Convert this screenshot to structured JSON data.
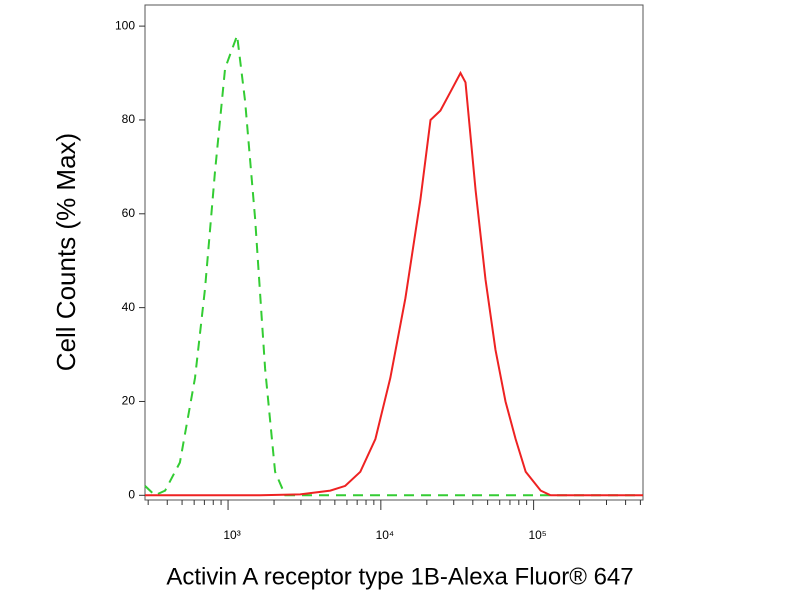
{
  "chart_data": {
    "type": "line",
    "xlabel": "Activin A receptor type 1B-Alexa Fluor® 647",
    "ylabel": "Cell Counts (% Max)",
    "xscale": "log",
    "xminor": true,
    "xlim": [
      286,
      520000
    ],
    "ylim": [
      -1,
      104.5
    ],
    "xticks": [
      {
        "value": 1000,
        "label": "10³"
      },
      {
        "value": 10000,
        "label": "10⁴"
      },
      {
        "value": 100000,
        "label": "10⁵"
      }
    ],
    "yticks": [
      0,
      20,
      40,
      60,
      80,
      100
    ],
    "series": [
      {
        "color": "#33cc33",
        "dash": true,
        "x": [
          286,
          332,
          387,
          484,
          608,
          707,
          822,
          956,
          1146,
          1292,
          1503,
          1749,
          2033,
          2366,
          13400,
          520000
        ],
        "values": [
          2,
          0,
          1,
          7,
          25,
          44,
          69,
          91,
          98,
          84,
          59,
          27,
          5,
          0,
          0,
          0
        ]
      },
      {
        "color": "#ee2222",
        "dash": false,
        "x": [
          286,
          1622,
          2966,
          4667,
          5849,
          7340,
          9207,
          11540,
          14480,
          18160,
          21130,
          24550,
          28560,
          33200,
          35810,
          41690,
          48440,
          56340,
          65500,
          76200,
          88700,
          111200,
          129200,
          520000
        ],
        "values": [
          0,
          0,
          0.2,
          1,
          2,
          5,
          12,
          25,
          42,
          63,
          80,
          82,
          86,
          90,
          88,
          65,
          46,
          31,
          20,
          12,
          5,
          1,
          0,
          0
        ]
      }
    ]
  }
}
